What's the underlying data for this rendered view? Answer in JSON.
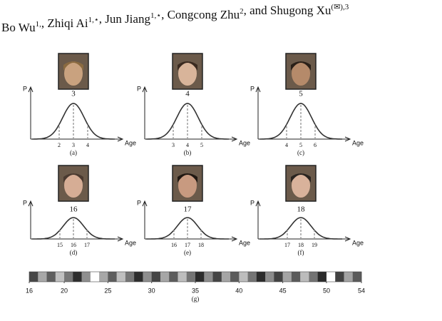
{
  "header": {
    "authors": [
      {
        "text": "Bo Wu",
        "sup": "1,"
      },
      {
        "text": ", Zhiqi Ai",
        "sup": "1,⋆"
      },
      {
        "text": ", Jun Jiang",
        "sup": "1,⋆"
      },
      {
        "text": ", Congcong Zhu",
        "sup": "2"
      },
      {
        "text": ", and Shugong Xu",
        "sup": "(✉),3"
      }
    ]
  },
  "figure": {
    "panels": [
      {
        "age": 3,
        "ticks": [
          2,
          3,
          4
        ],
        "caption": "(a)",
        "y_label": "P",
        "x_label": "Age"
      },
      {
        "age": 4,
        "ticks": [
          3,
          4,
          5
        ],
        "caption": "(b)",
        "y_label": "P",
        "x_label": "Age"
      },
      {
        "age": 5,
        "ticks": [
          4,
          5,
          6
        ],
        "caption": "(c)",
        "y_label": "P",
        "x_label": "Age"
      },
      {
        "age": 16,
        "ticks": [
          15,
          16,
          17
        ],
        "caption": "(d)",
        "y_label": "P",
        "x_label": "Age"
      },
      {
        "age": 17,
        "ticks": [
          16,
          17,
          18
        ],
        "caption": "(e)",
        "y_label": "P",
        "x_label": "Age"
      },
      {
        "age": 18,
        "ticks": [
          17,
          18,
          19
        ],
        "caption": "(f)",
        "y_label": "P",
        "x_label": "Age"
      }
    ],
    "age_bar": {
      "xlim": [
        16,
        54
      ],
      "xticks": [
        16,
        20,
        25,
        30,
        35,
        40,
        45,
        50,
        54
      ],
      "caption": "(g)"
    }
  }
}
